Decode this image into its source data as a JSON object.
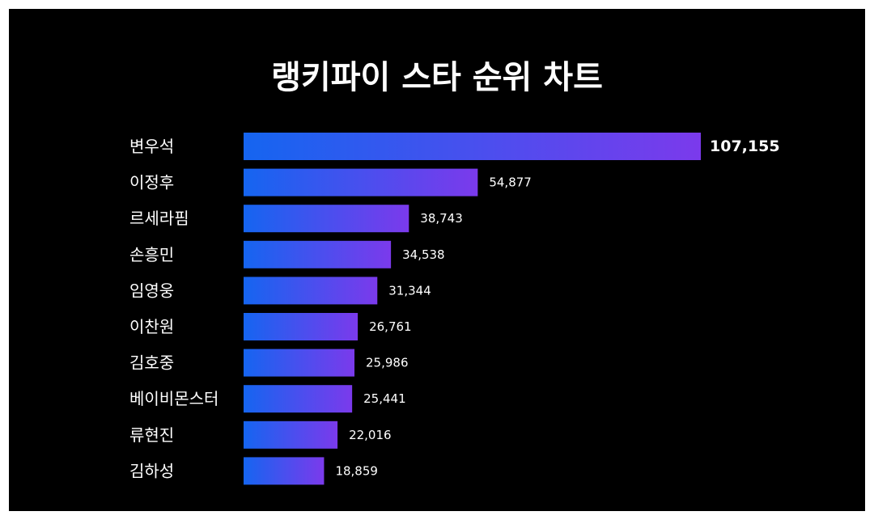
{
  "title": "랭키파이 스타 순위 차트",
  "colors": {
    "background": "#000000",
    "border": "#ffffff",
    "bar_start": "#1565f0",
    "bar_end": "#7b3aec",
    "text": "#ffffff"
  },
  "chart_data": {
    "type": "bar",
    "orientation": "horizontal",
    "title": "랭키파이 스타 순위 차트",
    "categories": [
      "변우석",
      "이정후",
      "르세라핌",
      "손흥민",
      "임영웅",
      "이찬원",
      "김호중",
      "베이비몬스터",
      "류현진",
      "김하성"
    ],
    "values": [
      107155,
      54877,
      38743,
      34538,
      31344,
      26761,
      25986,
      25441,
      22016,
      18859
    ],
    "value_labels": [
      "107,155",
      "54,877",
      "38,743",
      "34,538",
      "31,344",
      "26,761",
      "25,986",
      "25,441",
      "22,016",
      "18,859"
    ],
    "xlim": [
      0,
      107155
    ],
    "grid": false,
    "legend": "none"
  }
}
